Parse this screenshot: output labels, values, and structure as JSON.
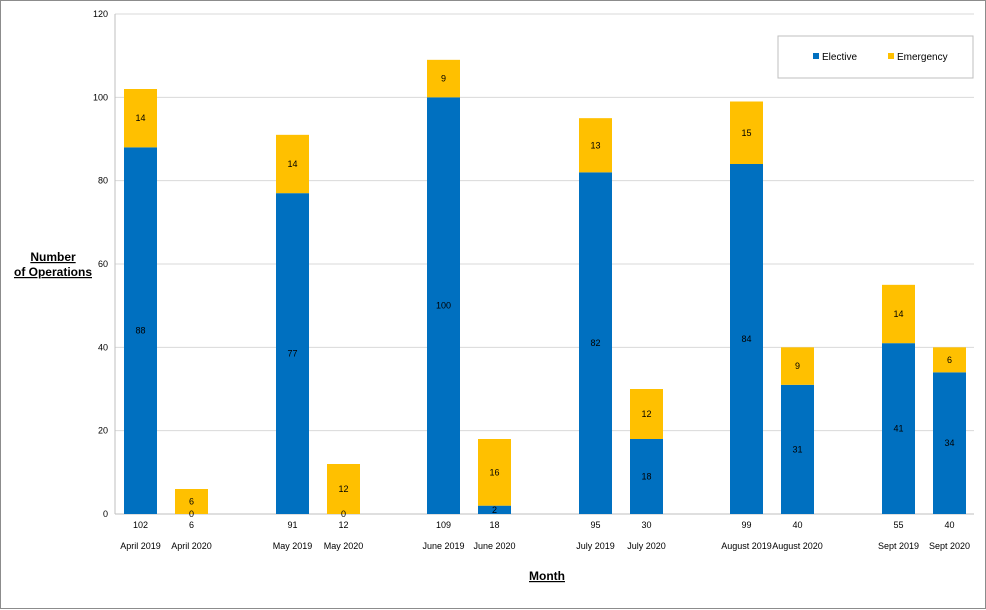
{
  "chart_data": {
    "type": "bar",
    "stacked": true,
    "title": "",
    "xlabel": "Month",
    "ylabel_lines": [
      "Number",
      "of Operations"
    ],
    "ylim": [
      0,
      120
    ],
    "yticks": [
      0,
      20,
      40,
      60,
      80,
      100,
      120
    ],
    "grid": true,
    "legend_position": "top-right",
    "categories": [
      "April 2019",
      "April 2020",
      "May 2019",
      "May 2020",
      "June 2019",
      "June 2020",
      "July 2019",
      "July 2020",
      "August 2019",
      "August 2020",
      "Sept 2019",
      "Sept 2020"
    ],
    "totals": [
      102,
      6,
      91,
      12,
      109,
      18,
      95,
      30,
      99,
      40,
      55,
      40
    ],
    "series": [
      {
        "name": "Elective",
        "color": "#0070c0",
        "values": [
          88,
          0,
          77,
          0,
          100,
          2,
          82,
          18,
          84,
          31,
          41,
          34
        ]
      },
      {
        "name": "Emergency",
        "color": "#ffc000",
        "values": [
          14,
          6,
          14,
          12,
          9,
          16,
          13,
          12,
          15,
          9,
          14,
          6
        ]
      }
    ]
  }
}
